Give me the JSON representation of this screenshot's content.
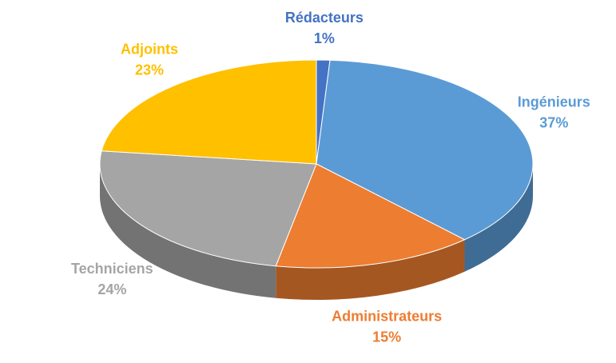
{
  "chart_data": {
    "type": "pie",
    "categories": [
      "Rédacteurs",
      "Ingénieurs",
      "Administrateurs",
      "Techniciens",
      "Adjoints"
    ],
    "values": [
      1,
      37,
      15,
      24,
      23
    ],
    "value_labels": [
      "1%",
      "37%",
      "15%",
      "24%",
      "23%"
    ],
    "colors": [
      "#4472c4",
      "#5b9bd5",
      "#ed7d31",
      "#a5a5a5",
      "#ffc000"
    ]
  }
}
